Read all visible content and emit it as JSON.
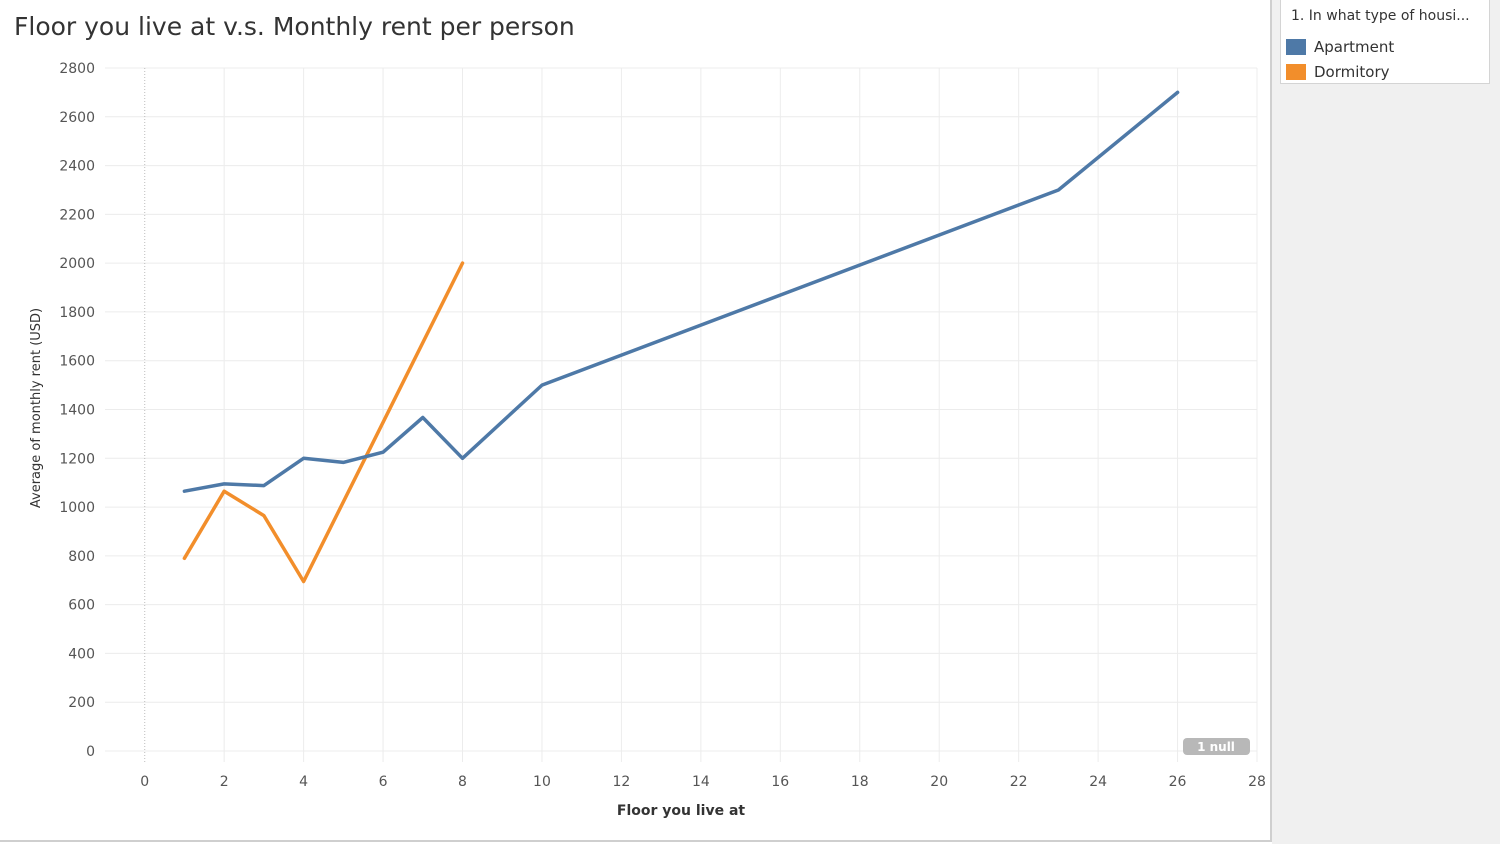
{
  "legend": {
    "title": "1. In what type of housi...",
    "items": [
      {
        "label": "Apartment",
        "color": "#4e79a7"
      },
      {
        "label": "Dormitory",
        "color": "#f28e2b"
      }
    ]
  },
  "null_badge": "1 null",
  "chart_data": {
    "type": "line",
    "title": "Floor you live at v.s. Monthly rent per person",
    "xlabel": "Floor you live at",
    "ylabel": "Average of monthly rent (USD)",
    "xlim": [
      -1,
      28
    ],
    "ylim": [
      0,
      2800
    ],
    "xticks": [
      0,
      2,
      4,
      6,
      8,
      10,
      12,
      14,
      16,
      18,
      20,
      22,
      24,
      26,
      28
    ],
    "yticks": [
      0,
      200,
      400,
      600,
      800,
      1000,
      1200,
      1400,
      1600,
      1800,
      2000,
      2200,
      2400,
      2600,
      2800
    ],
    "grid": true,
    "legend_position": "right",
    "series": [
      {
        "name": "Apartment",
        "color": "#4e79a7",
        "x": [
          1,
          2,
          3,
          4,
          5,
          6,
          7,
          8,
          10,
          23,
          26
        ],
        "y": [
          1065,
          1095,
          1088,
          1200,
          1183,
          1225,
          1367,
          1200,
          1500,
          2300,
          2700
        ]
      },
      {
        "name": "Dormitory",
        "color": "#f28e2b",
        "x": [
          1,
          2,
          3,
          4,
          8
        ],
        "y": [
          790,
          1065,
          965,
          695,
          2000
        ]
      }
    ]
  }
}
